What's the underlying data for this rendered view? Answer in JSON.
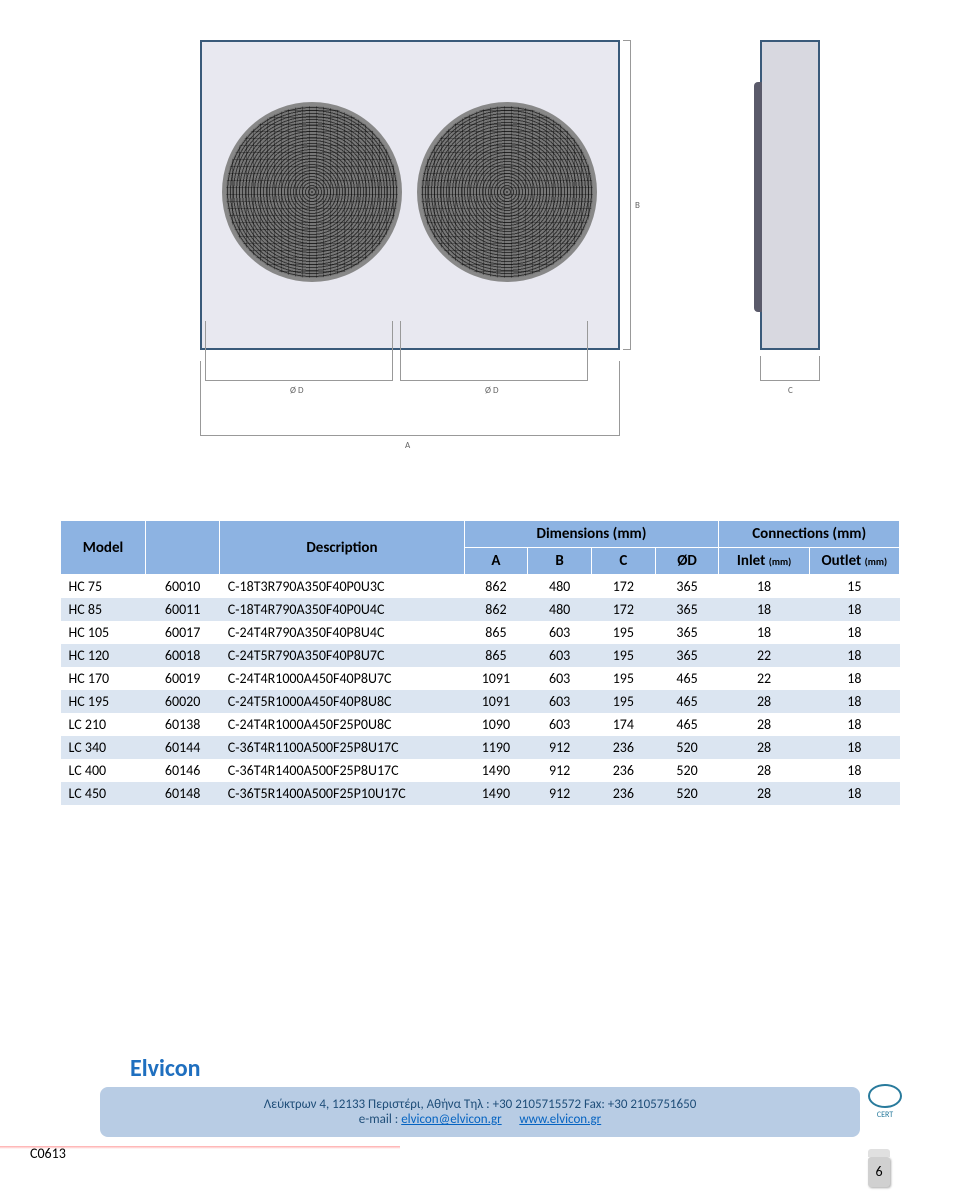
{
  "diagram": {
    "labels": {
      "A": "A",
      "B": "B",
      "C": "C",
      "OD": "Ø D"
    }
  },
  "table": {
    "headers": {
      "model": "Model",
      "description": "Description",
      "dimensions": "Dimensions (mm)",
      "connections": "Connections (mm)",
      "A": "A",
      "B": "B",
      "C": "C",
      "OD": "ØD",
      "inlet": "Inlet",
      "inlet_unit": "(mm)",
      "outlet": "Outlet",
      "outlet_unit": "(mm)"
    },
    "header_bg": "#8db3e2",
    "row_band_bg": "#dbe5f1",
    "rows": [
      {
        "model": "HC  75",
        "code": "60010",
        "desc": "C-18T3R790A350F40P0U3C",
        "A": 862,
        "B": 480,
        "C": 172,
        "OD": 365,
        "in": 18,
        "out": 15
      },
      {
        "model": "HC  85",
        "code": "60011",
        "desc": "C-18T4R790A350F40P0U4C",
        "A": 862,
        "B": 480,
        "C": 172,
        "OD": 365,
        "in": 18,
        "out": 18
      },
      {
        "model": "HC 105",
        "code": "60017",
        "desc": "C-24T4R790A350F40P8U4C",
        "A": 865,
        "B": 603,
        "C": 195,
        "OD": 365,
        "in": 18,
        "out": 18
      },
      {
        "model": "HC 120",
        "code": "60018",
        "desc": "C-24T5R790A350F40P8U7C",
        "A": 865,
        "B": 603,
        "C": 195,
        "OD": 365,
        "in": 22,
        "out": 18
      },
      {
        "model": "HC 170",
        "code": "60019",
        "desc": "C-24T4R1000A450F40P8U7C",
        "A": 1091,
        "B": 603,
        "C": 195,
        "OD": 465,
        "in": 22,
        "out": 18
      },
      {
        "model": "HC 195",
        "code": "60020",
        "desc": "C-24T5R1000A450F40P8U8C",
        "A": 1091,
        "B": 603,
        "C": 195,
        "OD": 465,
        "in": 28,
        "out": 18
      },
      {
        "model": "LC 210",
        "code": "60138",
        "desc": "C-24T4R1000A450F25P0U8C",
        "A": 1090,
        "B": 603,
        "C": 174,
        "OD": 465,
        "in": 28,
        "out": 18
      },
      {
        "model": "LC 340",
        "code": "60144",
        "desc": "C-36T4R1100A500F25P8U17C",
        "A": 1190,
        "B": 912,
        "C": 236,
        "OD": 520,
        "in": 28,
        "out": 18
      },
      {
        "model": "LC 400",
        "code": "60146",
        "desc": "C-36T4R1400A500F25P8U17C",
        "A": 1490,
        "B": 912,
        "C": 236,
        "OD": 520,
        "in": 28,
        "out": 18
      },
      {
        "model": "LC 450",
        "code": "60148",
        "desc": "C-36T5R1400A500F25P10U17C",
        "A": 1490,
        "B": 912,
        "C": 236,
        "OD": 520,
        "in": 28,
        "out": 18
      }
    ]
  },
  "footer": {
    "brand": "Elvicon",
    "address": "Λεύκτρων 4, 12133 Περιστέρι, Αθήνα   Τηλ : +30 2105715572 Fax: +30 2105751650",
    "email_label": "e-mail :",
    "email": "elvicon@elvicon.gr",
    "website": "www.elvicon.gr",
    "cert": "CERT",
    "doc_code": "C0613",
    "page": "6",
    "colors": {
      "brand": "#1f6fbf",
      "bar_bg": "#b8cce4",
      "link": "#0563c1"
    }
  }
}
